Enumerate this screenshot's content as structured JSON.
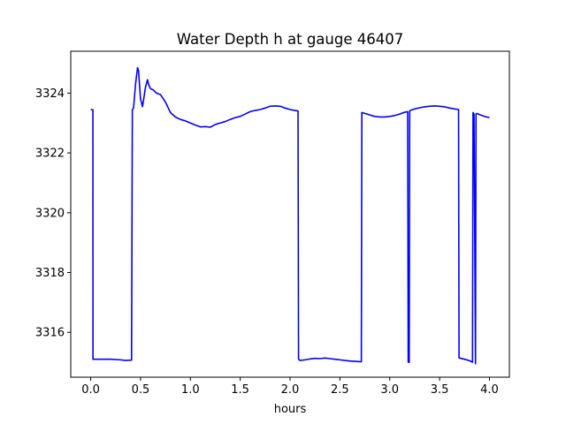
{
  "chart_data": {
    "type": "line",
    "title": "Water Depth h at gauge 46407",
    "xlabel": "hours",
    "ylabel": "",
    "xlim": [
      -0.2,
      4.2
    ],
    "ylim": [
      3314.5,
      3325.4
    ],
    "xticks": [
      0.0,
      0.5,
      1.0,
      1.5,
      2.0,
      2.5,
      3.0,
      3.5,
      4.0
    ],
    "xtick_labels": [
      "0.0",
      "0.5",
      "1.0",
      "1.5",
      "2.0",
      "2.5",
      "3.0",
      "3.5",
      "4.0"
    ],
    "yticks": [
      3316,
      3318,
      3320,
      3322,
      3324
    ],
    "ytick_labels": [
      "3316",
      "3318",
      "3320",
      "3322",
      "3324"
    ],
    "grid": false,
    "series": [
      {
        "color": "#0000ff",
        "x": [
          0.0,
          0.022,
          0.023,
          0.05,
          0.1,
          0.2,
          0.3,
          0.35,
          0.41,
          0.418,
          0.43,
          0.45,
          0.47,
          0.48,
          0.5,
          0.52,
          0.55,
          0.57,
          0.58,
          0.6,
          0.63,
          0.66,
          0.7,
          0.75,
          0.8,
          0.85,
          0.9,
          0.95,
          1.0,
          1.05,
          1.1,
          1.15,
          1.2,
          1.25,
          1.3,
          1.35,
          1.4,
          1.45,
          1.5,
          1.55,
          1.6,
          1.65,
          1.7,
          1.75,
          1.8,
          1.85,
          1.9,
          1.95,
          2.0,
          2.05,
          2.08,
          2.085,
          2.1,
          2.15,
          2.2,
          2.25,
          2.3,
          2.35,
          2.4,
          2.45,
          2.5,
          2.55,
          2.6,
          2.65,
          2.7,
          2.715,
          2.72,
          2.75,
          2.8,
          2.85,
          2.9,
          2.95,
          3.0,
          3.05,
          3.1,
          3.15,
          3.18,
          3.185,
          3.195,
          3.2,
          3.205,
          3.25,
          3.3,
          3.35,
          3.4,
          3.45,
          3.5,
          3.55,
          3.6,
          3.65,
          3.69,
          3.695,
          3.7,
          3.75,
          3.8,
          3.83,
          3.835,
          3.845,
          3.86,
          3.865,
          3.875,
          3.9,
          3.95,
          4.0
        ],
        "y": [
          3323.45,
          3323.44,
          3315.1,
          3315.1,
          3315.1,
          3315.1,
          3315.08,
          3315.06,
          3315.07,
          3323.45,
          3323.5,
          3324.3,
          3324.85,
          3324.75,
          3323.8,
          3323.55,
          3324.2,
          3324.45,
          3324.3,
          3324.15,
          3324.1,
          3324.0,
          3323.95,
          3323.7,
          3323.35,
          3323.2,
          3323.12,
          3323.07,
          3323.0,
          3322.93,
          3322.87,
          3322.88,
          3322.86,
          3322.95,
          3323.0,
          3323.05,
          3323.12,
          3323.18,
          3323.22,
          3323.3,
          3323.38,
          3323.42,
          3323.45,
          3323.5,
          3323.56,
          3323.57,
          3323.56,
          3323.5,
          3323.45,
          3323.42,
          3323.4,
          3315.1,
          3315.06,
          3315.08,
          3315.11,
          3315.13,
          3315.12,
          3315.14,
          3315.12,
          3315.1,
          3315.08,
          3315.06,
          3315.04,
          3315.03,
          3315.02,
          3315.02,
          3323.35,
          3323.32,
          3323.27,
          3323.22,
          3323.2,
          3323.2,
          3323.22,
          3323.25,
          3323.3,
          3323.36,
          3323.38,
          3315.0,
          3315.0,
          3323.4,
          3323.42,
          3323.47,
          3323.51,
          3323.54,
          3323.56,
          3323.57,
          3323.56,
          3323.54,
          3323.5,
          3323.47,
          3323.45,
          3315.15,
          3315.14,
          3315.1,
          3315.05,
          3315.0,
          3323.35,
          3323.3,
          3314.95,
          3323.3,
          3323.32,
          3323.28,
          3323.22,
          3323.18
        ]
      }
    ]
  }
}
